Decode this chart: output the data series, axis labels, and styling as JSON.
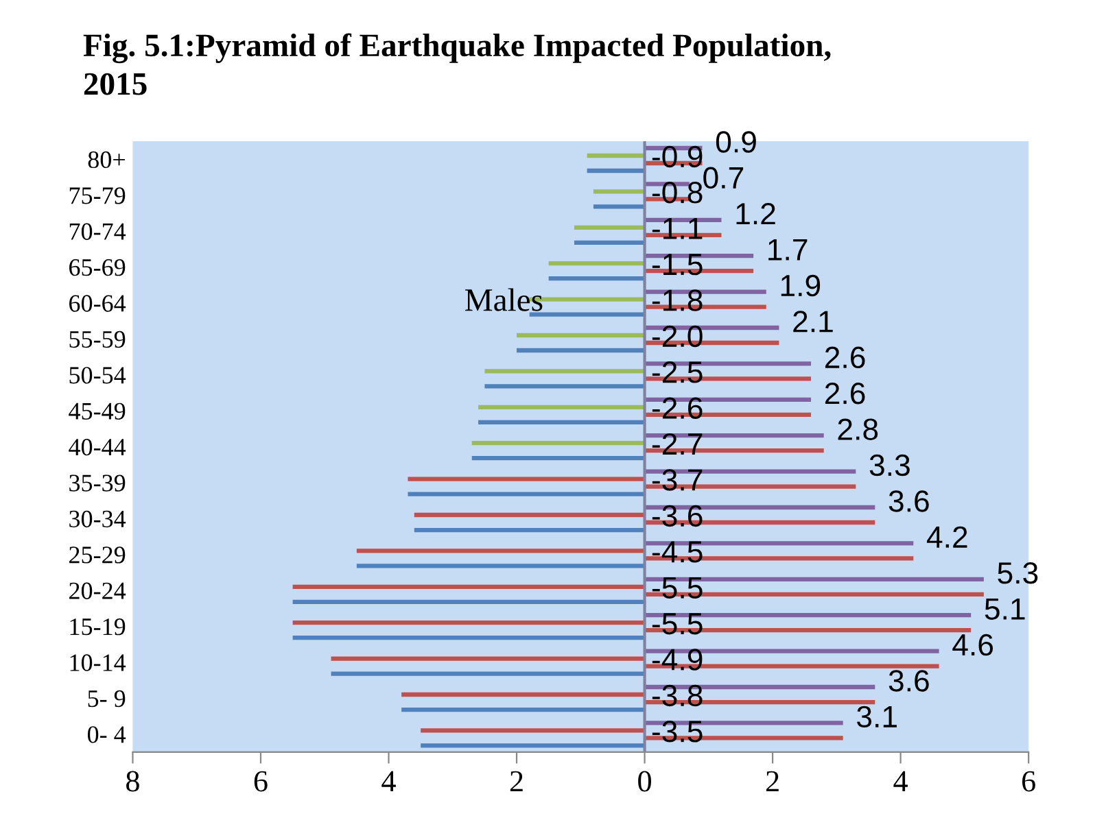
{
  "chart_data": {
    "type": "bar",
    "orientation": "horizontal",
    "title": "Fig. 5.1:Pyramid of Earthquake Impacted Population,\n2015",
    "categories": [
      "80+",
      "75-79",
      "70-74",
      "65-69",
      "60-64",
      "55-59",
      "50-54",
      "45-49",
      "40-44",
      "35-39",
      "30-34",
      "25-29",
      "20-24",
      "15-19",
      "10-14",
      "5- 9",
      "0- 4"
    ],
    "series": [
      {
        "color": "#8064a2",
        "values": [
          0.9,
          0.7,
          1.2,
          1.7,
          1.9,
          2.1,
          2.6,
          2.6,
          2.8,
          3.3,
          3.6,
          4.2,
          5.3,
          5.1,
          4.6,
          3.6,
          3.1
        ],
        "value_labels": [
          "0.9",
          "0.7",
          "1.2",
          "1.7",
          "1.9",
          "2.1",
          "2.6",
          "2.6",
          "2.8",
          "3.3",
          "3.6",
          "4.2",
          "5.3",
          "5.1",
          "4.6",
          "3.6",
          "3.1"
        ]
      },
      {
        "colors": [
          "#9bbb59",
          "#9bbb59",
          "#9bbb59",
          "#9bbb59",
          "#9bbb59",
          "#9bbb59",
          "#9bbb59",
          "#9bbb59",
          "#9bbb59",
          "#c0504d",
          "#c0504d",
          "#c0504d",
          "#c0504d",
          "#c0504d",
          "#c0504d",
          "#c0504d",
          "#c0504d"
        ],
        "values": [
          -0.9,
          -0.8,
          -1.1,
          -1.5,
          -1.8,
          -2.0,
          -2.5,
          -2.6,
          -2.7,
          -3.7,
          -3.6,
          -4.5,
          -5.5,
          -5.5,
          -4.9,
          -3.8,
          -3.5
        ],
        "value_labels": [
          "-0.9",
          "-0.8",
          "-1.1",
          "-1.5",
          "-1.8",
          "-2.0",
          "-2.5",
          "-2.6",
          "-2.7",
          "-3.7",
          "-3.6",
          "-4.5",
          "-5.5",
          "-5.5",
          "-4.9",
          "-3.8",
          "-3.5"
        ]
      },
      {
        "color": "#c0504d",
        "values": [
          0.9,
          0.7,
          1.2,
          1.7,
          1.9,
          2.1,
          2.6,
          2.6,
          2.8,
          3.3,
          3.6,
          4.2,
          5.3,
          5.1,
          4.6,
          3.6,
          3.1
        ]
      },
      {
        "color": "#4f81bd",
        "values": [
          -0.9,
          -0.8,
          -1.1,
          -1.5,
          -1.8,
          -2.0,
          -2.5,
          -2.6,
          -2.7,
          -3.7,
          -3.6,
          -4.5,
          -5.5,
          -5.5,
          -4.9,
          -3.8,
          -3.5
        ]
      }
    ],
    "xlim": [
      -8,
      6
    ],
    "xticks": [
      {
        "value": -8,
        "label": "8"
      },
      {
        "value": -6,
        "label": "6"
      },
      {
        "value": -4,
        "label": "4"
      },
      {
        "value": -2,
        "label": "2"
      },
      0,
      2,
      4,
      6
    ],
    "annotations": [
      "Males"
    ]
  }
}
